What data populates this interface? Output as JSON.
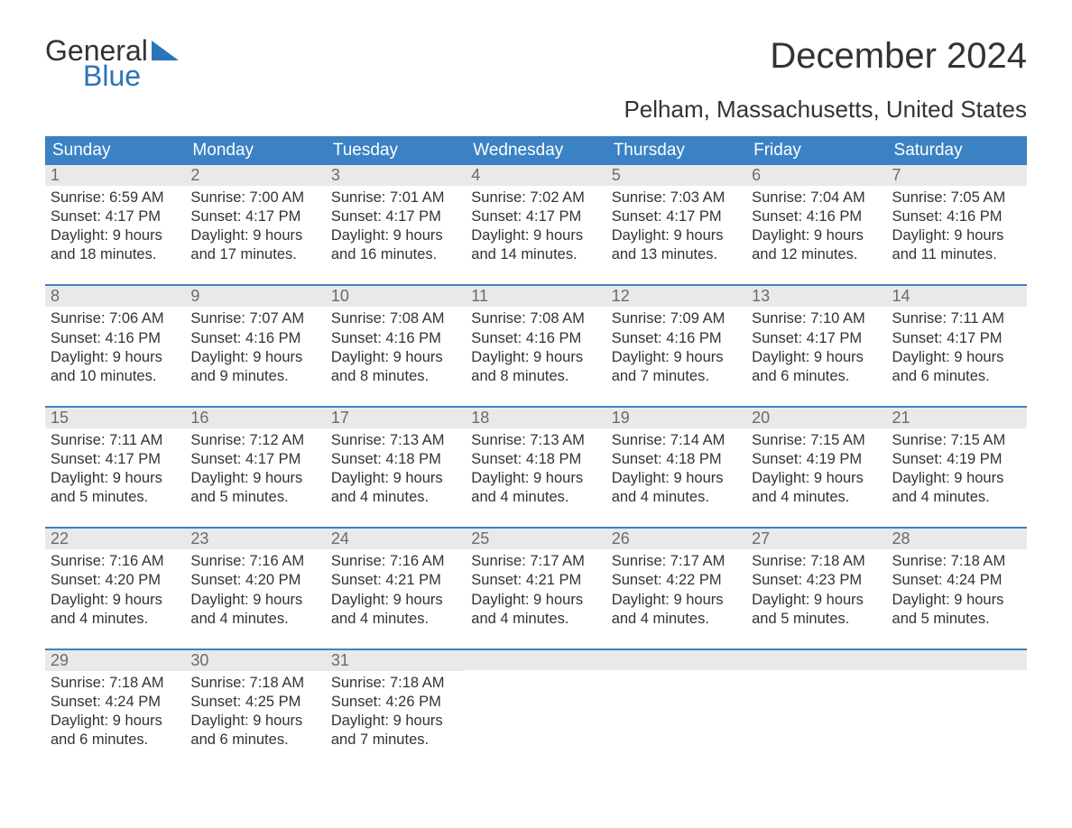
{
  "logo": {
    "line1": "General",
    "line2": "Blue",
    "accent_color": "#2a74b8"
  },
  "title": "December 2024",
  "location": "Pelham, Massachusetts, United States",
  "colors": {
    "header_bg": "#3b82c4",
    "header_text": "#ffffff",
    "daynum_bg": "#e9e9e9",
    "daynum_text": "#6b6b6b",
    "body_text": "#333333",
    "week_border": "#3b82c4",
    "page_bg": "#ffffff"
  },
  "weekdays": [
    "Sunday",
    "Monday",
    "Tuesday",
    "Wednesday",
    "Thursday",
    "Friday",
    "Saturday"
  ],
  "weeks": [
    [
      {
        "n": "1",
        "sr": "Sunrise: 6:59 AM",
        "ss": "Sunset: 4:17 PM",
        "d1": "Daylight: 9 hours",
        "d2": "and 18 minutes."
      },
      {
        "n": "2",
        "sr": "Sunrise: 7:00 AM",
        "ss": "Sunset: 4:17 PM",
        "d1": "Daylight: 9 hours",
        "d2": "and 17 minutes."
      },
      {
        "n": "3",
        "sr": "Sunrise: 7:01 AM",
        "ss": "Sunset: 4:17 PM",
        "d1": "Daylight: 9 hours",
        "d2": "and 16 minutes."
      },
      {
        "n": "4",
        "sr": "Sunrise: 7:02 AM",
        "ss": "Sunset: 4:17 PM",
        "d1": "Daylight: 9 hours",
        "d2": "and 14 minutes."
      },
      {
        "n": "5",
        "sr": "Sunrise: 7:03 AM",
        "ss": "Sunset: 4:17 PM",
        "d1": "Daylight: 9 hours",
        "d2": "and 13 minutes."
      },
      {
        "n": "6",
        "sr": "Sunrise: 7:04 AM",
        "ss": "Sunset: 4:16 PM",
        "d1": "Daylight: 9 hours",
        "d2": "and 12 minutes."
      },
      {
        "n": "7",
        "sr": "Sunrise: 7:05 AM",
        "ss": "Sunset: 4:16 PM",
        "d1": "Daylight: 9 hours",
        "d2": "and 11 minutes."
      }
    ],
    [
      {
        "n": "8",
        "sr": "Sunrise: 7:06 AM",
        "ss": "Sunset: 4:16 PM",
        "d1": "Daylight: 9 hours",
        "d2": "and 10 minutes."
      },
      {
        "n": "9",
        "sr": "Sunrise: 7:07 AM",
        "ss": "Sunset: 4:16 PM",
        "d1": "Daylight: 9 hours",
        "d2": "and 9 minutes."
      },
      {
        "n": "10",
        "sr": "Sunrise: 7:08 AM",
        "ss": "Sunset: 4:16 PM",
        "d1": "Daylight: 9 hours",
        "d2": "and 8 minutes."
      },
      {
        "n": "11",
        "sr": "Sunrise: 7:08 AM",
        "ss": "Sunset: 4:16 PM",
        "d1": "Daylight: 9 hours",
        "d2": "and 8 minutes."
      },
      {
        "n": "12",
        "sr": "Sunrise: 7:09 AM",
        "ss": "Sunset: 4:16 PM",
        "d1": "Daylight: 9 hours",
        "d2": "and 7 minutes."
      },
      {
        "n": "13",
        "sr": "Sunrise: 7:10 AM",
        "ss": "Sunset: 4:17 PM",
        "d1": "Daylight: 9 hours",
        "d2": "and 6 minutes."
      },
      {
        "n": "14",
        "sr": "Sunrise: 7:11 AM",
        "ss": "Sunset: 4:17 PM",
        "d1": "Daylight: 9 hours",
        "d2": "and 6 minutes."
      }
    ],
    [
      {
        "n": "15",
        "sr": "Sunrise: 7:11 AM",
        "ss": "Sunset: 4:17 PM",
        "d1": "Daylight: 9 hours",
        "d2": "and 5 minutes."
      },
      {
        "n": "16",
        "sr": "Sunrise: 7:12 AM",
        "ss": "Sunset: 4:17 PM",
        "d1": "Daylight: 9 hours",
        "d2": "and 5 minutes."
      },
      {
        "n": "17",
        "sr": "Sunrise: 7:13 AM",
        "ss": "Sunset: 4:18 PM",
        "d1": "Daylight: 9 hours",
        "d2": "and 4 minutes."
      },
      {
        "n": "18",
        "sr": "Sunrise: 7:13 AM",
        "ss": "Sunset: 4:18 PM",
        "d1": "Daylight: 9 hours",
        "d2": "and 4 minutes."
      },
      {
        "n": "19",
        "sr": "Sunrise: 7:14 AM",
        "ss": "Sunset: 4:18 PM",
        "d1": "Daylight: 9 hours",
        "d2": "and 4 minutes."
      },
      {
        "n": "20",
        "sr": "Sunrise: 7:15 AM",
        "ss": "Sunset: 4:19 PM",
        "d1": "Daylight: 9 hours",
        "d2": "and 4 minutes."
      },
      {
        "n": "21",
        "sr": "Sunrise: 7:15 AM",
        "ss": "Sunset: 4:19 PM",
        "d1": "Daylight: 9 hours",
        "d2": "and 4 minutes."
      }
    ],
    [
      {
        "n": "22",
        "sr": "Sunrise: 7:16 AM",
        "ss": "Sunset: 4:20 PM",
        "d1": "Daylight: 9 hours",
        "d2": "and 4 minutes."
      },
      {
        "n": "23",
        "sr": "Sunrise: 7:16 AM",
        "ss": "Sunset: 4:20 PM",
        "d1": "Daylight: 9 hours",
        "d2": "and 4 minutes."
      },
      {
        "n": "24",
        "sr": "Sunrise: 7:16 AM",
        "ss": "Sunset: 4:21 PM",
        "d1": "Daylight: 9 hours",
        "d2": "and 4 minutes."
      },
      {
        "n": "25",
        "sr": "Sunrise: 7:17 AM",
        "ss": "Sunset: 4:21 PM",
        "d1": "Daylight: 9 hours",
        "d2": "and 4 minutes."
      },
      {
        "n": "26",
        "sr": "Sunrise: 7:17 AM",
        "ss": "Sunset: 4:22 PM",
        "d1": "Daylight: 9 hours",
        "d2": "and 4 minutes."
      },
      {
        "n": "27",
        "sr": "Sunrise: 7:18 AM",
        "ss": "Sunset: 4:23 PM",
        "d1": "Daylight: 9 hours",
        "d2": "and 5 minutes."
      },
      {
        "n": "28",
        "sr": "Sunrise: 7:18 AM",
        "ss": "Sunset: 4:24 PM",
        "d1": "Daylight: 9 hours",
        "d2": "and 5 minutes."
      }
    ],
    [
      {
        "n": "29",
        "sr": "Sunrise: 7:18 AM",
        "ss": "Sunset: 4:24 PM",
        "d1": "Daylight: 9 hours",
        "d2": "and 6 minutes."
      },
      {
        "n": "30",
        "sr": "Sunrise: 7:18 AM",
        "ss": "Sunset: 4:25 PM",
        "d1": "Daylight: 9 hours",
        "d2": "and 6 minutes."
      },
      {
        "n": "31",
        "sr": "Sunrise: 7:18 AM",
        "ss": "Sunset: 4:26 PM",
        "d1": "Daylight: 9 hours",
        "d2": "and 7 minutes."
      },
      null,
      null,
      null,
      null
    ]
  ]
}
